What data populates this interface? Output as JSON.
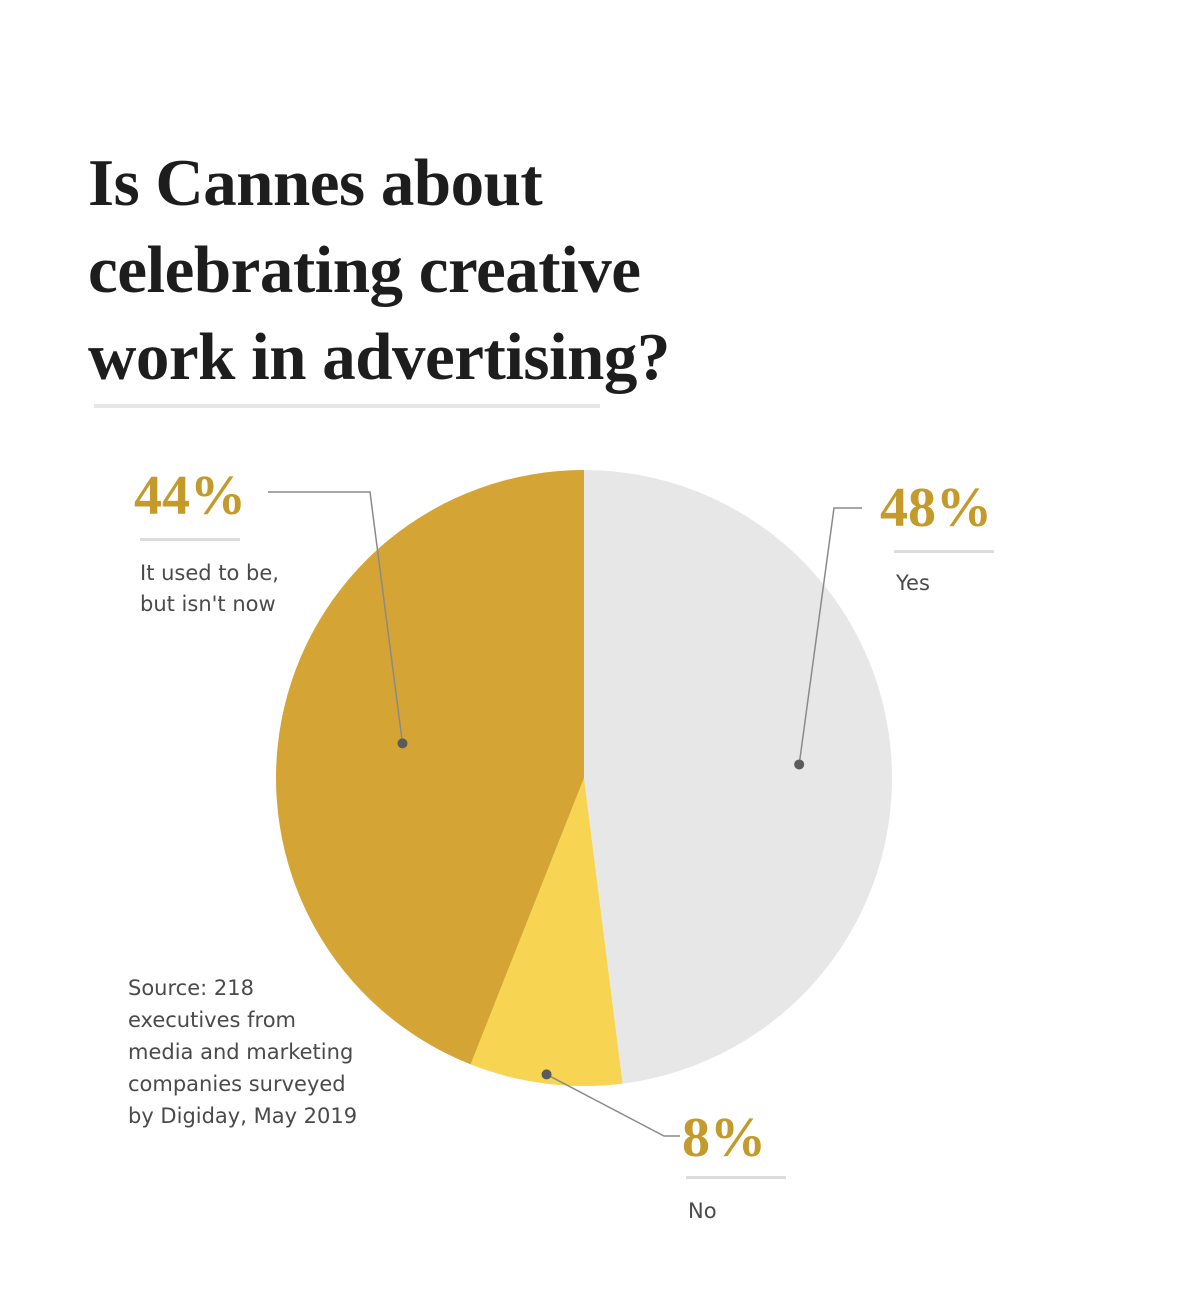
{
  "title_lines": [
    "Is Cannes about",
    "celebrating creative",
    "work in advertising?"
  ],
  "source_lines": [
    "Source: 218",
    "executives from",
    "media and marketing",
    "companies surveyed",
    "by Digiday, May 2019"
  ],
  "chart_data": {
    "type": "pie",
    "title": "Is Cannes about celebrating creative work in advertising?",
    "slices": [
      {
        "label": "Yes",
        "label_lines": [
          "Yes"
        ],
        "value": 48,
        "value_label": "48%",
        "color": "#e8e7e7"
      },
      {
        "label": "No",
        "label_lines": [
          "No"
        ],
        "value": 8,
        "value_label": "8%",
        "color": "#f7d552"
      },
      {
        "label": "It used to be, but isn't now",
        "label_lines": [
          "It used to be,",
          "but isn't now"
        ],
        "value": 44,
        "value_label": "44%",
        "color": "#d4a535"
      }
    ],
    "start_angle_deg": 0,
    "direction": "clockwise",
    "colors": {
      "value_text": "#c49a2a",
      "leader_line": "#8a8a8a",
      "leader_dot": "#5b5b5b"
    }
  }
}
